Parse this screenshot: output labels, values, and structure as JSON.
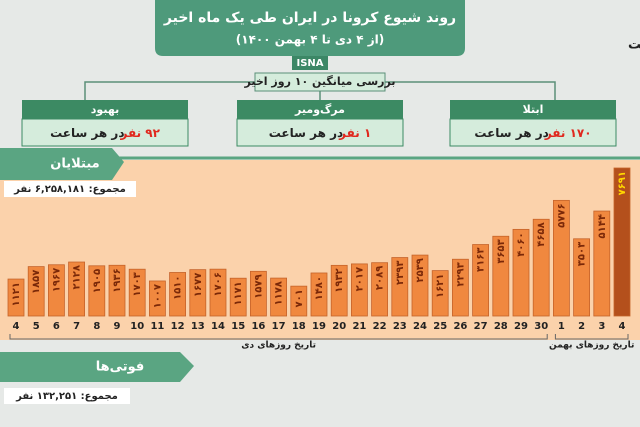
{
  "header": {
    "title": "روند شیوع کرونا در ایران طی یک ماه اخیر",
    "subtitle": "(از ۴ دی تا ۴ بهمن ۱۴۰۰)",
    "source": "ISNA",
    "note": "اعداد بر حسب نفر است"
  },
  "average": {
    "title": "بررسی میانگین ۱۰ روز اخیر",
    "stats": [
      {
        "label": "بهبود",
        "value": "۹۲ نفر",
        "unit": "در هر ساعت"
      },
      {
        "label": "مرگ‌ومیر",
        "value": "۱ نفر",
        "unit": "در هر ساعت"
      },
      {
        "label": "ابتلا",
        "value": "۱۷۰ نفر",
        "unit": "در هر ساعت"
      }
    ]
  },
  "chart_data": {
    "type": "bar",
    "title": "مبتلایان",
    "subtitle": "مجموع: ۶,۲۵۸,۱۸۱ نفر",
    "groups": [
      {
        "label": "تاریخ روزهای دی",
        "categories": [
          "4",
          "5",
          "6",
          "7",
          "8",
          "9",
          "10",
          "11",
          "12",
          "13",
          "14",
          "15",
          "16",
          "17",
          "18",
          "19",
          "20",
          "21",
          "22",
          "23",
          "24",
          "25",
          "26",
          "27",
          "28",
          "29",
          "30"
        ]
      },
      {
        "label": "تاریخ روزهای بهمن",
        "categories": [
          "1",
          "2",
          "3",
          "4"
        ]
      }
    ],
    "values": [
      1121,
      1857,
      1967,
      2128,
      1905,
      1936,
      1703,
      1007,
      1510,
      1677,
      1706,
      1171,
      1579,
      1178,
      701,
      1480,
      1932,
      2017,
      2089,
      2393,
      2539,
      1621,
      2293,
      3163,
      3653,
      4060,
      4658,
      5776,
      3503,
      5144,
      7691
    ],
    "value_labels": [
      "۱۱۲۱",
      "۱۸۵۷",
      "۱۹۶۷",
      "۲۱۲۸",
      "۱۹۰۵",
      "۱۹۳۶",
      "۱۷۰۳",
      "۱۰۰۷",
      "۱۵۱۰",
      "۱۶۷۷",
      "۱۷۰۶",
      "۱۱۷۱",
      "۱۵۷۹",
      "۱۱۷۸",
      "۷۰۱",
      "۱۴۸۰",
      "۱۹۳۲",
      "۲۰۱۷",
      "۲۰۸۹",
      "۲۳۹۳",
      "۲۵۳۹",
      "۱۶۲۱",
      "۲۲۹۳",
      "۳۱۶۳",
      "۳۶۵۳",
      "۴۰۶۰",
      "۴۶۵۸",
      "۵۷۷۶",
      "۳۵۰۳",
      "۵۱۴۴",
      "۷۶۹۱"
    ],
    "color": "#f0883f",
    "last_color": "#b4501c",
    "label_color": "#7a2808",
    "last_label_color": "#ffd700"
  },
  "deaths": {
    "title": "فوتی‌ها",
    "total": "مجموع: ۱۳۲,۲۵۱ نفر"
  }
}
